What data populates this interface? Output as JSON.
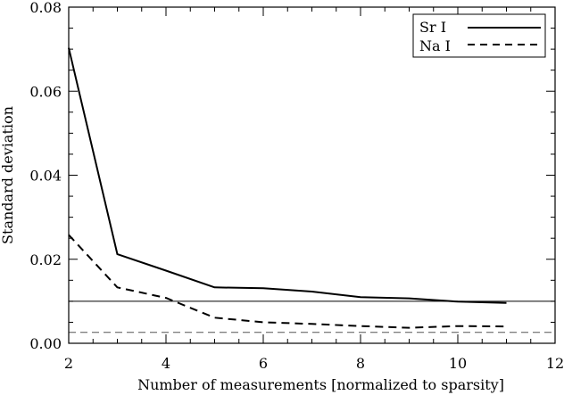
{
  "chart_data": {
    "type": "line",
    "xlabel": "Number of measurements [normalized to sparsity]",
    "ylabel": "Standard deviation",
    "xlim": [
      2,
      12
    ],
    "ylim": [
      0.0,
      0.08
    ],
    "xticks": [
      "2",
      "4",
      "6",
      "8",
      "10",
      "12"
    ],
    "yticks": [
      "0.00",
      "0.02",
      "0.04",
      "0.06",
      "0.08"
    ],
    "xtick_values": [
      2,
      4,
      6,
      8,
      10,
      12
    ],
    "ytick_values": [
      0.0,
      0.02,
      0.04,
      0.06,
      0.08
    ],
    "series": [
      {
        "name": "Sr I",
        "style": "solid",
        "x": [
          2,
          3,
          4,
          5,
          6,
          7,
          8,
          9,
          10,
          11
        ],
        "y": [
          0.0703,
          0.0212,
          0.0173,
          0.0133,
          0.0131,
          0.0123,
          0.011,
          0.0107,
          0.0099,
          0.0096
        ]
      },
      {
        "name": "Na I",
        "style": "dashed",
        "x": [
          2,
          3,
          4,
          5,
          6,
          7,
          8,
          9,
          10,
          11
        ],
        "y": [
          0.0258,
          0.0133,
          0.0108,
          0.0061,
          0.005,
          0.0046,
          0.0041,
          0.0037,
          0.0041,
          0.004
        ]
      }
    ],
    "reference_lines": [
      {
        "style": "solid",
        "y": 0.01
      },
      {
        "style": "dashed",
        "y": 0.0026
      }
    ],
    "legend": {
      "position": "top-right",
      "entries": [
        {
          "label": "Sr I",
          "style": "solid"
        },
        {
          "label": "Na I",
          "style": "dashed"
        }
      ]
    },
    "colors": {
      "line": "#000000",
      "reference_dashed": "#555555"
    },
    "grid": false
  }
}
